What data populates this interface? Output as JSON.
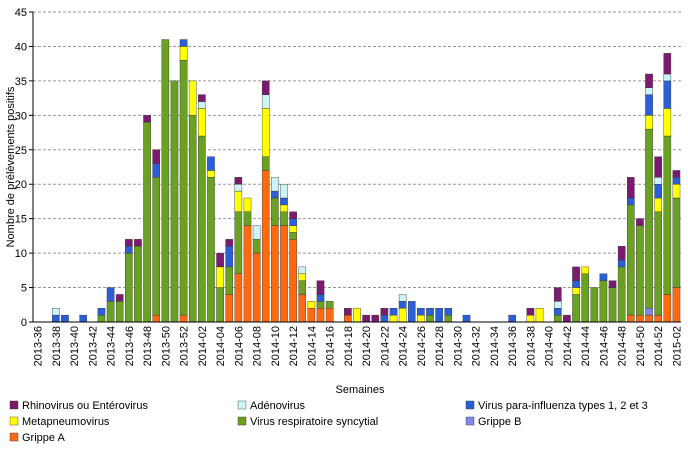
{
  "chart_data": {
    "type": "stacked_bar",
    "y_label": "Nombre de prélèvements positifs",
    "x_label": "Semaines",
    "categories": [
      "2013-36",
      null,
      "2013-38",
      null,
      "2013-40",
      null,
      "2013-42",
      null,
      "2013-44",
      null,
      "2013-46",
      null,
      "2013-48",
      null,
      "2013-50",
      null,
      "2013-52",
      null,
      "2014-02",
      null,
      "2014-04",
      null,
      "2014-06",
      null,
      "2014-08",
      null,
      "2014-10",
      null,
      "2014-12",
      null,
      "2014-14",
      null,
      "2014-16",
      null,
      "2014-18",
      null,
      "2014-20",
      null,
      "2014-22",
      null,
      "2014-24",
      null,
      "2014-26",
      null,
      "2014-28",
      null,
      "2014-30",
      null,
      "2014-32",
      null,
      "2014-34",
      null,
      "2014-36",
      null,
      "2014-38",
      null,
      "2014-40",
      null,
      "2014-42",
      null,
      "2014-44",
      null,
      "2014-46",
      null,
      "2014-48",
      null,
      "2014-50",
      null,
      "2014-52",
      null,
      "2015-02"
    ],
    "series": [
      {
        "name": "Rhinovirus ou Entérovirus",
        "color": "#7b1a6f",
        "values": [
          0,
          0,
          0,
          0,
          0,
          0,
          0,
          0,
          0,
          1,
          1,
          1,
          1,
          2,
          0,
          0,
          0,
          0,
          1,
          0,
          2,
          1,
          1,
          0,
          0,
          2,
          0,
          0,
          1,
          0,
          0,
          2,
          0,
          0,
          1,
          0,
          1,
          1,
          1,
          0,
          0,
          0,
          0,
          0,
          0,
          0,
          0,
          0,
          0,
          0,
          0,
          0,
          0,
          0,
          1,
          0,
          0,
          2,
          1,
          2,
          0,
          0,
          0,
          1,
          2,
          3,
          1,
          2,
          3,
          3,
          1
        ]
      },
      {
        "name": "Adénovirus",
        "color": "#ccf3f5",
        "values": [
          0,
          0,
          1,
          0,
          0,
          0,
          0,
          0,
          0,
          0,
          0,
          0,
          0,
          0,
          0,
          0,
          0,
          0,
          1,
          0,
          0,
          0,
          1,
          0,
          2,
          2,
          2,
          2,
          0,
          1,
          0,
          0,
          0,
          0,
          0,
          0,
          0,
          0,
          0,
          0,
          1,
          0,
          0,
          0,
          0,
          0,
          0,
          0,
          0,
          0,
          0,
          0,
          0,
          0,
          0,
          0,
          0,
          1,
          0,
          0,
          0,
          0,
          0,
          0,
          0,
          0,
          0,
          1,
          1,
          1,
          0
        ]
      },
      {
        "name": "Virus para-influenza types 1, 2 et 3",
        "color": "#2a5fd8",
        "values": [
          0,
          0,
          1,
          1,
          0,
          1,
          0,
          1,
          2,
          0,
          1,
          0,
          0,
          2,
          0,
          0,
          1,
          0,
          0,
          2,
          0,
          3,
          0,
          0,
          0,
          0,
          1,
          1,
          1,
          0,
          0,
          1,
          0,
          0,
          0,
          0,
          0,
          0,
          1,
          1,
          1,
          3,
          1,
          1,
          2,
          1,
          0,
          1,
          0,
          0,
          0,
          0,
          1,
          0,
          0,
          0,
          0,
          1,
          0,
          1,
          0,
          0,
          1,
          0,
          1,
          1,
          0,
          3,
          2,
          4,
          1
        ]
      },
      {
        "name": "Metapneumovirus",
        "color": "#ffff00",
        "values": [
          0,
          0,
          0,
          0,
          0,
          0,
          0,
          0,
          0,
          0,
          0,
          0,
          0,
          0,
          0,
          0,
          2,
          5,
          4,
          1,
          3,
          0,
          3,
          2,
          0,
          7,
          0,
          1,
          1,
          1,
          1,
          0,
          0,
          0,
          0,
          2,
          0,
          0,
          0,
          1,
          2,
          0,
          1,
          0,
          0,
          0,
          0,
          0,
          0,
          0,
          0,
          0,
          0,
          0,
          1,
          2,
          0,
          0,
          0,
          1,
          1,
          0,
          0,
          0,
          0,
          0,
          0,
          2,
          2,
          4,
          2
        ]
      },
      {
        "name": "Virus respiratoire syncytial",
        "color": "#6aa122",
        "values": [
          0,
          0,
          0,
          0,
          0,
          0,
          0,
          1,
          3,
          3,
          10,
          11,
          29,
          20,
          41,
          35,
          37,
          30,
          27,
          21,
          5,
          4,
          9,
          2,
          2,
          2,
          4,
          2,
          1,
          2,
          0,
          1,
          1,
          0,
          0,
          0,
          0,
          0,
          0,
          0,
          0,
          0,
          0,
          1,
          0,
          1,
          0,
          0,
          0,
          0,
          0,
          0,
          0,
          0,
          0,
          0,
          0,
          1,
          0,
          4,
          7,
          5,
          6,
          5,
          8,
          16,
          13,
          26,
          15,
          23,
          13
        ]
      },
      {
        "name": "Grippe B",
        "color": "#8088f0",
        "values": [
          0,
          0,
          0,
          0,
          0,
          0,
          0,
          0,
          0,
          0,
          0,
          0,
          0,
          0,
          0,
          0,
          0,
          0,
          0,
          0,
          0,
          0,
          0,
          0,
          0,
          0,
          0,
          0,
          0,
          0,
          0,
          0,
          0,
          0,
          0,
          0,
          0,
          0,
          0,
          0,
          0,
          0,
          0,
          0,
          0,
          0,
          0,
          0,
          0,
          0,
          0,
          0,
          0,
          0,
          0,
          0,
          0,
          0,
          0,
          0,
          0,
          0,
          0,
          0,
          0,
          0,
          0,
          1,
          0,
          0,
          0
        ]
      },
      {
        "name": "Grippe A",
        "color": "#ff6a10",
        "values": [
          0,
          0,
          0,
          0,
          0,
          0,
          0,
          0,
          0,
          0,
          0,
          0,
          0,
          1,
          0,
          0,
          1,
          0,
          0,
          0,
          0,
          4,
          7,
          14,
          10,
          22,
          14,
          14,
          12,
          4,
          2,
          2,
          2,
          0,
          1,
          0,
          0,
          0,
          0,
          0,
          0,
          0,
          0,
          0,
          0,
          0,
          0,
          0,
          0,
          0,
          0,
          0,
          0,
          0,
          0,
          0,
          0,
          0,
          0,
          0,
          0,
          0,
          0,
          0,
          0,
          1,
          1,
          1,
          1,
          4,
          5
        ]
      }
    ],
    "ylim": [
      0,
      45
    ],
    "yticks": [
      0,
      5,
      10,
      15,
      20,
      25,
      30,
      35,
      40,
      45
    ],
    "grid": true
  }
}
